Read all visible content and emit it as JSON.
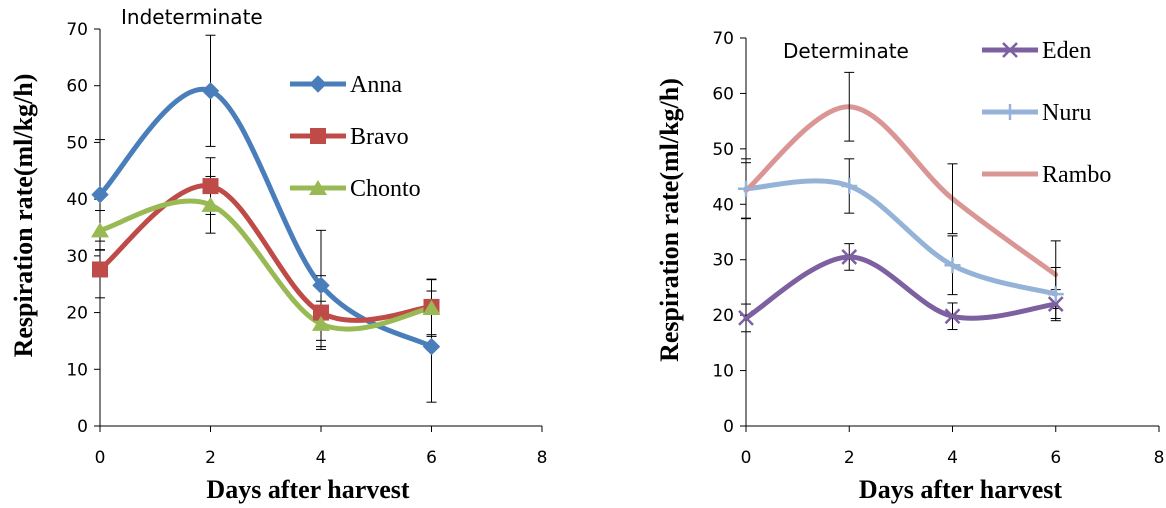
{
  "chart_data": [
    {
      "type": "line",
      "title": "Indeterminate",
      "xlabel": "Days after harvest",
      "ylabel": "Respiration rate(ml/kg/h)",
      "xlim": [
        0,
        8
      ],
      "ylim": [
        0,
        70
      ],
      "xticks": [
        "0",
        "2",
        "4",
        "6",
        "8"
      ],
      "yticks": [
        "0",
        "10",
        "20",
        "30",
        "40",
        "50",
        "60",
        "70"
      ],
      "grid": false,
      "legend_position": "top-right",
      "series": [
        {
          "name": "Anna",
          "color": "#4a7ebb",
          "marker": "diamond",
          "x": [
            0,
            2,
            4,
            6
          ],
          "values": [
            40.8,
            59.1,
            24.8,
            14.0
          ],
          "errors": [
            9.7,
            9.8,
            9.7,
            9.8
          ]
        },
        {
          "name": "Bravo",
          "color": "#be4b48",
          "marker": "square",
          "x": [
            0,
            2,
            4,
            6
          ],
          "values": [
            27.6,
            42.3,
            20.0,
            21.0
          ],
          "errors": [
            5.0,
            5.0,
            6.5,
            4.9
          ]
        },
        {
          "name": "Chonto",
          "color": "#98b954",
          "marker": "triangle",
          "x": [
            0,
            2,
            4,
            6
          ],
          "values": [
            34.5,
            39.0,
            18.0,
            20.8
          ],
          "errors": [
            3.5,
            5.0,
            4.0,
            5.0
          ]
        }
      ]
    },
    {
      "type": "line",
      "title": "Determinate",
      "xlabel": "Days after harvest",
      "ylabel": "Respiration rate(ml/kg/h)",
      "xlim": [
        0,
        8
      ],
      "ylim": [
        0,
        70
      ],
      "xticks": [
        "0",
        "2",
        "4",
        "6",
        "8"
      ],
      "yticks": [
        "0",
        "10",
        "20",
        "30",
        "40",
        "50",
        "60",
        "70"
      ],
      "grid": false,
      "legend_position": "top-right",
      "series": [
        {
          "name": "Eden",
          "color": "#7d60a0",
          "marker": "x",
          "x": [
            0,
            2,
            4,
            6
          ],
          "values": [
            19.5,
            30.5,
            19.8,
            22.0
          ],
          "errors": [
            2.5,
            2.4,
            2.4,
            2.6
          ]
        },
        {
          "name": "Nuru",
          "color": "#95b3d7",
          "marker": "plus",
          "x": [
            0,
            2,
            4,
            6
          ],
          "values": [
            42.8,
            43.3,
            29.0,
            23.8
          ],
          "errors": [
            5.4,
            4.9,
            5.3,
            4.8
          ]
        },
        {
          "name": "Rambo",
          "color": "#d99694",
          "marker": "none",
          "x": [
            0,
            2,
            4,
            6
          ],
          "values": [
            42.5,
            57.6,
            41.0,
            27.3
          ],
          "errors": [
            5.0,
            6.2,
            6.3,
            6.1
          ]
        }
      ]
    }
  ]
}
